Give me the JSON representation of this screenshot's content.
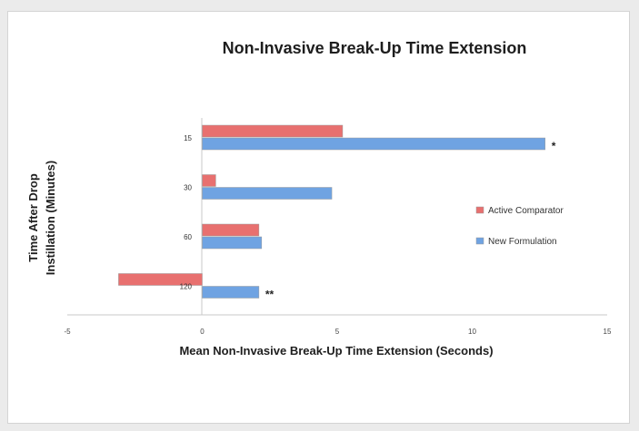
{
  "chart_data": {
    "type": "bar",
    "orientation": "horizontal",
    "title": "Non-Invasive Break-Up Time Extension",
    "xlabel": "Mean Non-Invasive Break-Up Time Extension (Seconds)",
    "ylabel_lines": [
      "Time After Drop",
      "Instillation (Minutes)"
    ],
    "categories": [
      "15",
      "30",
      "60",
      "120"
    ],
    "series": [
      {
        "name": "Active Comparator",
        "color": "#e8706f",
        "values": [
          5.2,
          0.5,
          2.1,
          -3.1
        ]
      },
      {
        "name": "New Formulation",
        "color": "#6fa3e2",
        "values": [
          12.7,
          4.8,
          2.2,
          2.1
        ]
      }
    ],
    "annotations": [
      {
        "category": "15",
        "series": "New Formulation",
        "text": "*"
      },
      {
        "category": "120",
        "series": "New Formulation",
        "text": "**"
      }
    ],
    "xlim": [
      -5,
      15
    ],
    "xticks": [
      "-5",
      "0",
      "5",
      "10",
      "15"
    ],
    "grid": false,
    "legend_position": "right"
  }
}
